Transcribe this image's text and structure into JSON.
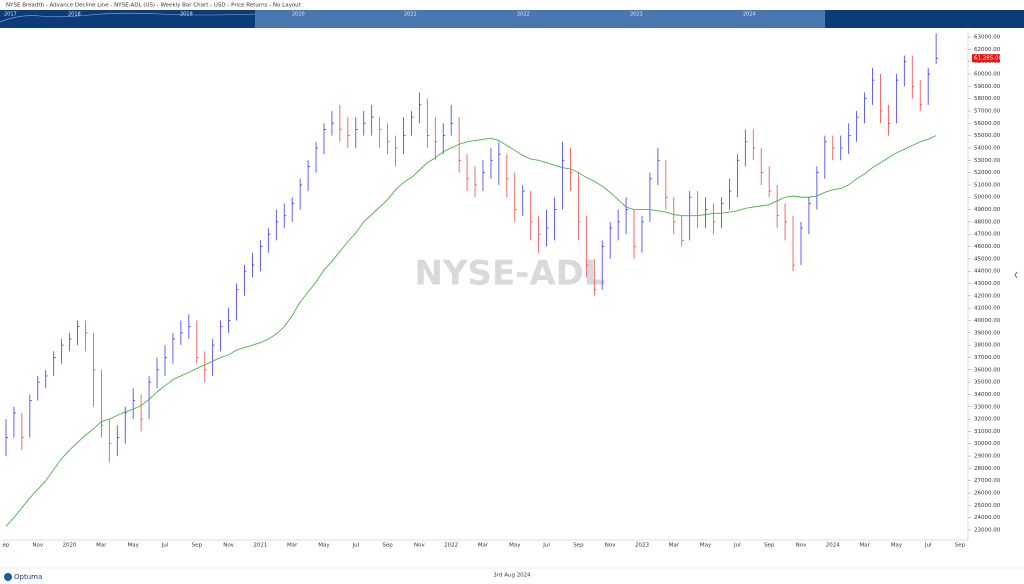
{
  "header": {
    "title": "NYSE Breadth - Advance Decline Line - NYSE-ADL (US) - Weekly Bar Chart - USD - Price Returns - No Layout"
  },
  "navigator": {
    "labels": [
      "2017",
      "2018",
      "2019",
      "2020",
      "2021",
      "2022",
      "2023",
      "2024"
    ]
  },
  "footer": {
    "logo": "Optuma",
    "date": "3rd Aug 2024"
  },
  "chart_data": {
    "type": "bar",
    "watermark": "NYSE-ADL",
    "up_color": "#3b3bf0",
    "down_color": "#f04848",
    "ma_color": "#4cb04c",
    "categories": [
      "ep",
      null,
      null,
      null,
      "Nov",
      null,
      null,
      null,
      "2020",
      null,
      null,
      null,
      "Mar",
      null,
      null,
      null,
      "May",
      null,
      null,
      null,
      "Jul",
      null,
      null,
      null,
      "Sep",
      null,
      null,
      null,
      "Nov",
      null,
      null,
      null,
      "2021",
      null,
      null,
      null,
      "Mar",
      null,
      null,
      null,
      "May",
      null,
      null,
      null,
      "Jul",
      null,
      null,
      null,
      "Sep",
      null,
      null,
      null,
      "Nov",
      null,
      null,
      null,
      "2022",
      null,
      null,
      null,
      "Mar",
      null,
      null,
      null,
      "May",
      null,
      null,
      null,
      "Jul",
      null,
      null,
      null,
      "Sep",
      null,
      null,
      null,
      "Nov",
      null,
      null,
      null,
      "2023",
      null,
      null,
      null,
      "Mar",
      null,
      null,
      null,
      "May",
      null,
      null,
      null,
      "Jul",
      null,
      null,
      null,
      "Sep",
      null,
      null,
      null,
      "Nov",
      null,
      null,
      null,
      "2024",
      null,
      null,
      null,
      "Mar",
      null,
      null,
      null,
      "May",
      null,
      null,
      null,
      "Jul",
      null,
      null,
      null,
      "Sep"
    ],
    "high": [
      32000,
      33000,
      32500,
      34000,
      35500,
      36000,
      37500,
      38500,
      39000,
      40000,
      40000,
      39000,
      36000,
      32000,
      31500,
      33000,
      34500,
      34000,
      35500,
      37000,
      38000,
      39000,
      40000,
      40500,
      40000,
      37500,
      38500,
      40000,
      41000,
      43000,
      44500,
      45500,
      46500,
      47500,
      49000,
      49500,
      50000,
      51500,
      53000,
      54500,
      56000,
      57000,
      57500,
      56500,
      56500,
      57000,
      57500,
      56500,
      56000,
      55000,
      56500,
      57000,
      58500,
      58000,
      56500,
      56000,
      57500,
      56500,
      53500,
      52500,
      53000,
      54000,
      54500,
      53500,
      52000,
      51000,
      50500,
      48500,
      49000,
      50000,
      54500,
      54000,
      52000,
      48500,
      45000,
      46500,
      48000,
      49000,
      50000,
      49000,
      48500,
      52000,
      54000,
      53000,
      50000,
      48500,
      50500,
      50500,
      50000,
      49500,
      50000,
      51500,
      53500,
      55500,
      55500,
      54000,
      52500,
      51000,
      49500,
      48500,
      48000,
      50000,
      52500,
      55000,
      55000,
      55000,
      56000,
      57000,
      58500,
      60500,
      60000,
      57500,
      60000,
      61500,
      61500,
      59500,
      60500,
      63300,
      null,
      null,
      null
    ],
    "low": [
      29000,
      30500,
      29500,
      30500,
      33500,
      34500,
      35500,
      36500,
      37500,
      38000,
      37500,
      33000,
      30500,
      28500,
      29000,
      30000,
      32000,
      31000,
      32000,
      34500,
      35500,
      36500,
      38000,
      38500,
      36500,
      35000,
      35500,
      37500,
      39000,
      40000,
      42000,
      43500,
      44000,
      45500,
      46500,
      47500,
      48000,
      49000,
      50500,
      52000,
      53500,
      55000,
      54500,
      54000,
      54000,
      55000,
      55000,
      54000,
      53500,
      52500,
      53500,
      55000,
      56000,
      54000,
      53000,
      53500,
      55000,
      52000,
      50500,
      50000,
      50500,
      51500,
      51000,
      50000,
      48000,
      48500,
      46500,
      45500,
      46000,
      46500,
      49000,
      50500,
      46500,
      43500,
      42000,
      42500,
      45000,
      46500,
      47000,
      45000,
      45500,
      48000,
      51000,
      49000,
      47000,
      46000,
      46500,
      47500,
      47500,
      47000,
      47500,
      49000,
      50000,
      52500,
      53000,
      51000,
      50000,
      47500,
      46500,
      44000,
      44500,
      47000,
      49000,
      51500,
      53000,
      53000,
      53500,
      54500,
      56000,
      57500,
      56000,
      55000,
      56000,
      59000,
      58000,
      57000,
      57500,
      60800,
      null,
      null,
      null
    ],
    "close": [
      30500,
      32500,
      30500,
      33500,
      35000,
      35500,
      37000,
      38000,
      38500,
      39500,
      39000,
      36000,
      31500,
      30000,
      30500,
      32500,
      33500,
      32000,
      35000,
      36000,
      37000,
      38500,
      39000,
      39500,
      37000,
      36000,
      38000,
      39500,
      40000,
      42500,
      44000,
      44500,
      46000,
      47000,
      48000,
      48500,
      49500,
      51000,
      52500,
      54000,
      55500,
      56000,
      55500,
      55000,
      55500,
      56000,
      56500,
      55500,
      54500,
      54000,
      55000,
      56500,
      57500,
      55000,
      54500,
      55000,
      56000,
      53000,
      51500,
      51000,
      52000,
      53000,
      53500,
      51500,
      49000,
      50500,
      48000,
      47000,
      47500,
      49000,
      53000,
      52000,
      48000,
      44500,
      42500,
      46000,
      47500,
      48000,
      49000,
      46000,
      48000,
      51500,
      53000,
      50000,
      48000,
      46500,
      50000,
      48500,
      49000,
      48000,
      49500,
      50500,
      53000,
      54500,
      54000,
      52000,
      50500,
      48500,
      48000,
      44500,
      47500,
      49500,
      52000,
      54500,
      54000,
      54000,
      55000,
      56500,
      58000,
      59500,
      57000,
      56000,
      59500,
      61000,
      59000,
      57500,
      60000,
      61285,
      null,
      null,
      null
    ],
    "moving_average": [
      23300,
      24000,
      24800,
      25600,
      26300,
      27000,
      27900,
      28800,
      29500,
      30100,
      30700,
      31200,
      31800,
      32000,
      32300,
      32600,
      32800,
      33100,
      33600,
      34200,
      34700,
      35200,
      35500,
      35800,
      36100,
      36400,
      36700,
      37000,
      37200,
      37600,
      37800,
      38000,
      38200,
      38500,
      38900,
      39500,
      40400,
      41500,
      42300,
      43100,
      44100,
      44800,
      45600,
      46400,
      47100,
      48000,
      48600,
      49200,
      49800,
      50600,
      51200,
      51600,
      52200,
      52800,
      53200,
      53700,
      54000,
      54300,
      54500,
      54600,
      54700,
      54800,
      54600,
      54200,
      53800,
      53400,
      53100,
      53000,
      52800,
      52600,
      52400,
      52300,
      52000,
      51600,
      51300,
      50900,
      50400,
      49800,
      49200,
      49000,
      49000,
      49000,
      48900,
      48800,
      48600,
      48500,
      48500,
      48500,
      48600,
      48700,
      48700,
      48800,
      48900,
      49100,
      49200,
      49300,
      49400,
      49700,
      50000,
      50100,
      50000,
      50000,
      50100,
      50400,
      50600,
      50700,
      51000,
      51500,
      51900,
      52400,
      52800,
      53200,
      53600,
      53900,
      54200,
      54500,
      54700,
      55000,
      null,
      null,
      null
    ],
    "last_price": {
      "value": 61285,
      "label": "61,285.00"
    },
    "ylim": [
      22190,
      63570
    ],
    "yticks": [
      {
        "value": 23000,
        "label": "23000.00"
      },
      {
        "value": 24000,
        "label": "24000.00"
      },
      {
        "value": 25000,
        "label": "25000.00"
      },
      {
        "value": 26000,
        "label": "26000.00"
      },
      {
        "value": 27000,
        "label": "27000.00"
      },
      {
        "value": 28000,
        "label": "28000.00"
      },
      {
        "value": 29000,
        "label": "29000.00"
      },
      {
        "value": 30000,
        "label": "30000.00"
      },
      {
        "value": 31000,
        "label": "31000.00"
      },
      {
        "value": 32000,
        "label": "32000.00"
      },
      {
        "value": 33000,
        "label": "33000.00"
      },
      {
        "value": 34000,
        "label": "34000.00"
      },
      {
        "value": 35000,
        "label": "35000.00"
      },
      {
        "value": 36000,
        "label": "36000.00"
      },
      {
        "value": 37000,
        "label": "37000.00"
      },
      {
        "value": 38000,
        "label": "38000.00"
      },
      {
        "value": 39000,
        "label": "39000.00"
      },
      {
        "value": 40000,
        "label": "40000.00"
      },
      {
        "value": 41000,
        "label": "41000.00"
      },
      {
        "value": 42000,
        "label": "42000.00"
      },
      {
        "value": 43000,
        "label": "43000.00"
      },
      {
        "value": 44000,
        "label": "44000.00"
      },
      {
        "value": 45000,
        "label": "45000.00"
      },
      {
        "value": 46000,
        "label": "46000.00"
      },
      {
        "value": 47000,
        "label": "47000.00"
      },
      {
        "value": 48000,
        "label": "48000.00"
      },
      {
        "value": 49000,
        "label": "49000.00"
      },
      {
        "value": 50000,
        "label": "50000.00"
      },
      {
        "value": 51000,
        "label": "51000.00"
      },
      {
        "value": 52000,
        "label": "52000.00"
      },
      {
        "value": 53000,
        "label": "53000.00"
      },
      {
        "value": 54000,
        "label": "54000.00"
      },
      {
        "value": 55000,
        "label": "55000.00"
      },
      {
        "value": 56000,
        "label": "56000.00"
      },
      {
        "value": 57000,
        "label": "57000.00"
      },
      {
        "value": 58000,
        "label": "58000.00"
      },
      {
        "value": 59000,
        "label": "59000.00"
      },
      {
        "value": 60000,
        "label": "60000.00"
      },
      {
        "value": 61000,
        "label": "61000.00"
      },
      {
        "value": 62000,
        "label": "62000.00"
      },
      {
        "value": 63000,
        "label": "63000.00"
      }
    ]
  }
}
